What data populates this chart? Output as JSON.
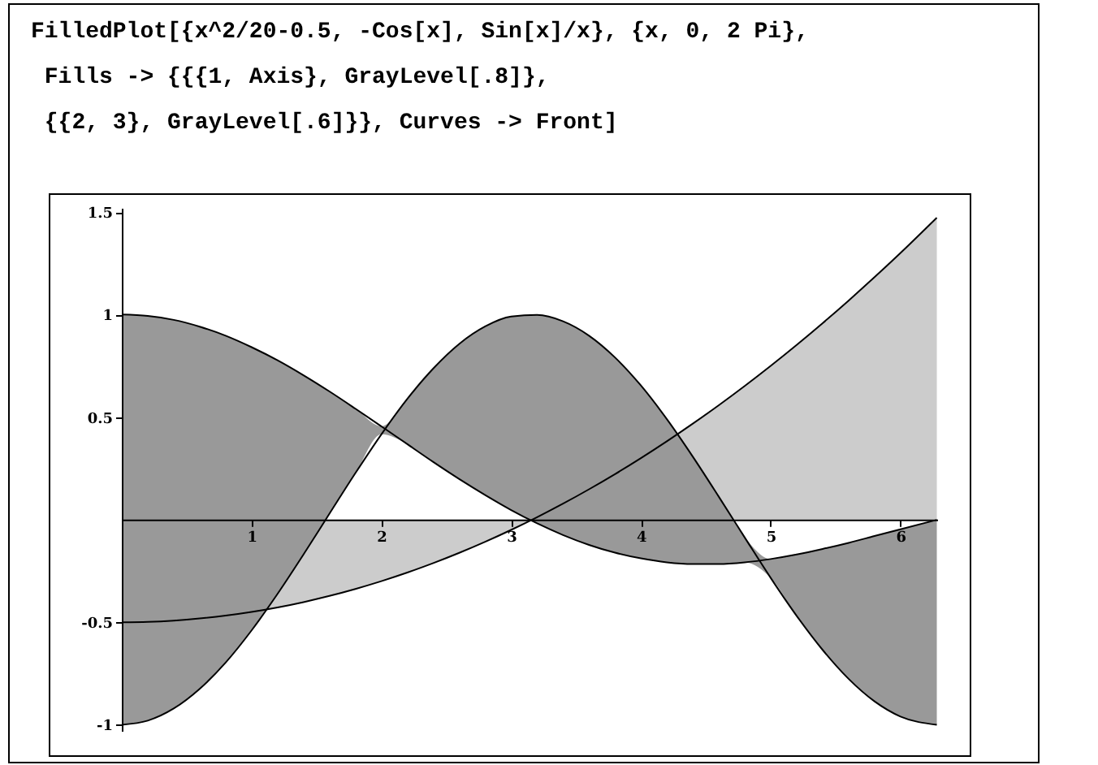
{
  "chart_data": {
    "type": "area",
    "title": "FilledPlot[{x^2/20-0.5, -Cos[x], Sin[x]/x}, {x, 0, 2 Pi},\n Fills -> {{{1, Axis}, GrayLevel[.8]},\n {{2, 3}, GrayLevel[.6]}}, Curves -> Front]",
    "x": [
      0,
      0.2,
      0.4,
      0.6,
      0.8,
      1.0,
      1.2,
      1.4,
      1.6,
      1.8,
      2.0,
      2.2,
      2.4,
      2.6,
      2.8,
      3.0,
      3.2,
      3.4,
      3.6,
      3.8,
      4.0,
      4.2,
      4.4,
      4.6,
      4.8,
      5.0,
      5.2,
      5.4,
      5.6,
      5.8,
      6.0,
      6.28
    ],
    "series": [
      {
        "color": "#cccccc",
        "values": [
          -0.5,
          -0.498,
          -0.492,
          -0.482,
          -0.468,
          -0.45,
          -0.428,
          -0.402,
          -0.372,
          -0.338,
          -0.3,
          -0.258,
          -0.212,
          -0.162,
          -0.108,
          -0.05,
          0.012,
          0.078,
          0.148,
          0.222,
          0.3,
          0.382,
          0.468,
          0.558,
          0.652,
          0.75,
          0.852,
          0.958,
          1.068,
          1.182,
          1.3,
          1.472
        ]
      },
      {
        "type": "line",
        "color": "#000000",
        "values": [
          -1,
          -0.98,
          -0.921,
          -0.825,
          -0.697,
          -0.54,
          -0.362,
          -0.17,
          0.029,
          0.227,
          0.416,
          0.589,
          0.737,
          0.857,
          0.942,
          0.99,
          0.998,
          0.967,
          0.897,
          0.791,
          0.654,
          0.49,
          0.307,
          0.112,
          -0.087,
          -0.284,
          -0.469,
          -0.635,
          -0.776,
          -0.886,
          -0.96,
          -1.0
        ]
      },
      {
        "type": "line",
        "color": "#000000",
        "values": [
          1,
          0.993,
          0.974,
          0.941,
          0.897,
          0.841,
          0.777,
          0.704,
          0.625,
          0.541,
          0.455,
          0.368,
          0.281,
          0.198,
          0.12,
          0.047,
          -0.018,
          -0.075,
          -0.123,
          -0.161,
          -0.189,
          -0.208,
          -0.216,
          -0.216,
          -0.208,
          -0.192,
          -0.17,
          -0.143,
          -0.113,
          -0.08,
          -0.047,
          -0.001
        ],
        "lower": [
          -1,
          -0.98,
          -0.921,
          -0.825,
          -0.697,
          -0.54,
          -0.362,
          -0.17,
          0.029,
          0.227,
          0.416,
          0.368,
          0.281,
          0.198,
          0.12,
          0.047,
          -0.018,
          -0.075,
          -0.123,
          -0.161,
          -0.189,
          -0.208,
          -0.216,
          -0.216,
          -0.208,
          -0.284,
          -0.469,
          -0.635,
          -0.776,
          -0.886,
          -0.96,
          -1.0
        ],
        "upper": [
          1,
          0.993,
          0.974,
          0.941,
          0.897,
          0.841,
          0.777,
          0.704,
          0.625,
          0.541,
          0.455,
          0.589,
          0.737,
          0.857,
          0.942,
          0.99,
          0.998,
          0.967,
          0.897,
          0.791,
          0.654,
          0.49,
          0.307,
          0.112,
          -0.087,
          -0.192,
          -0.17,
          -0.143,
          -0.113,
          -0.08,
          -0.047,
          -0.001
        ]
      }
    ],
    "xlim": [
      0,
      6.283
    ],
    "ylim": [
      -1.03,
      1.52
    ],
    "xticks": [
      1,
      2,
      3,
      4,
      5,
      6
    ],
    "yticks": [
      -1,
      -0.5,
      0.5,
      1,
      1.5
    ]
  }
}
